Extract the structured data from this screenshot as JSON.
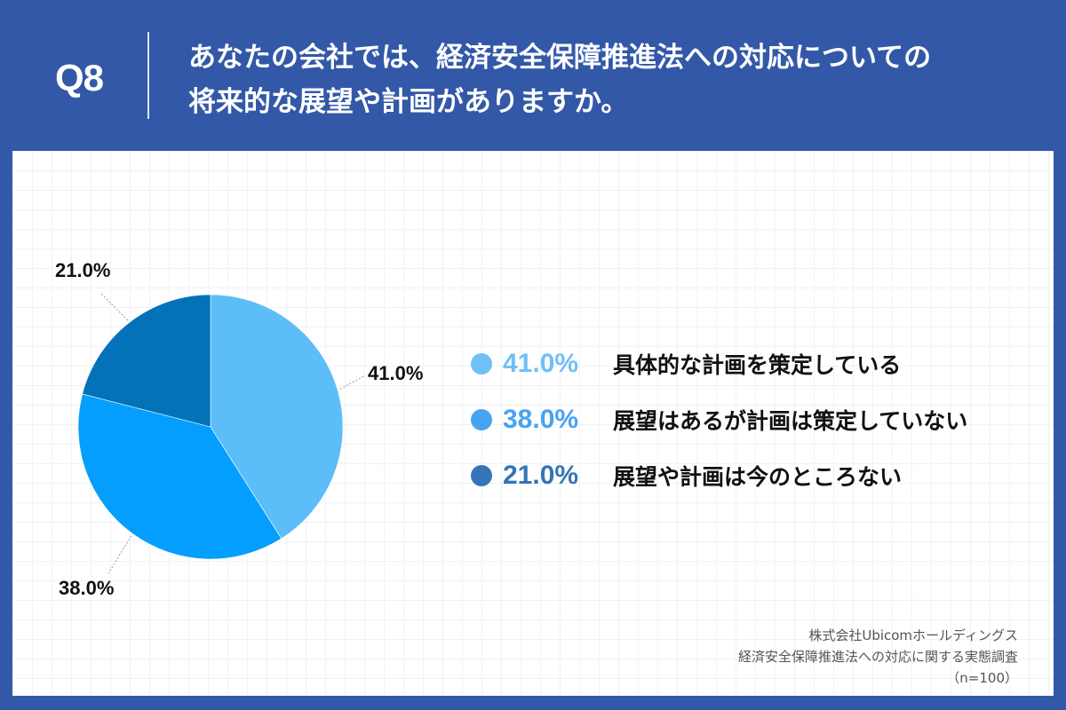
{
  "header": {
    "question_number": "Q8",
    "question_lines": [
      "あなたの会社では、経済安全保障推進法への対応についての",
      "将来的な展望や計画がありますか。"
    ]
  },
  "colors": {
    "background": "#3358a8",
    "card": "#ffffff",
    "slice_1": "#5cbdf8",
    "slice_2": "#049ffe",
    "slice_3": "#0472b9",
    "legend_pct_1": "#6fc0f6",
    "legend_pct_2": "#47a3f2",
    "legend_pct_3": "#3375b6"
  },
  "legend": [
    {
      "pct": "41.0%",
      "label": "具体的な計画を策定している",
      "dot_color": "#6fc0f6"
    },
    {
      "pct": "38.0%",
      "label": "展望はあるが計画は策定していない",
      "dot_color": "#47a3f2"
    },
    {
      "pct": "21.0%",
      "label": "展望や計画は今のところない",
      "dot_color": "#3375b6"
    }
  ],
  "slice_labels": [
    "41.0%",
    "38.0%",
    "21.0%"
  ],
  "source": {
    "company": "株式会社Ubicomホールディングス",
    "survey": "経済安全保障推進法への対応に関する実態調査",
    "sample": "（n=100）"
  },
  "chart_data": {
    "type": "pie",
    "title": "あなたの会社では、経済安全保障推進法への対応についての将来的な展望や計画がありますか。",
    "categories": [
      "具体的な計画を策定している",
      "展望はあるが計画は策定していない",
      "展望や計画は今のところない"
    ],
    "values": [
      41.0,
      38.0,
      21.0
    ],
    "unit": "%",
    "colors": [
      "#5cbdf8",
      "#049ffe",
      "#0472b9"
    ],
    "start_angle": "12 o'clock, clockwise",
    "legend_position": "right",
    "sample_size": 100
  }
}
